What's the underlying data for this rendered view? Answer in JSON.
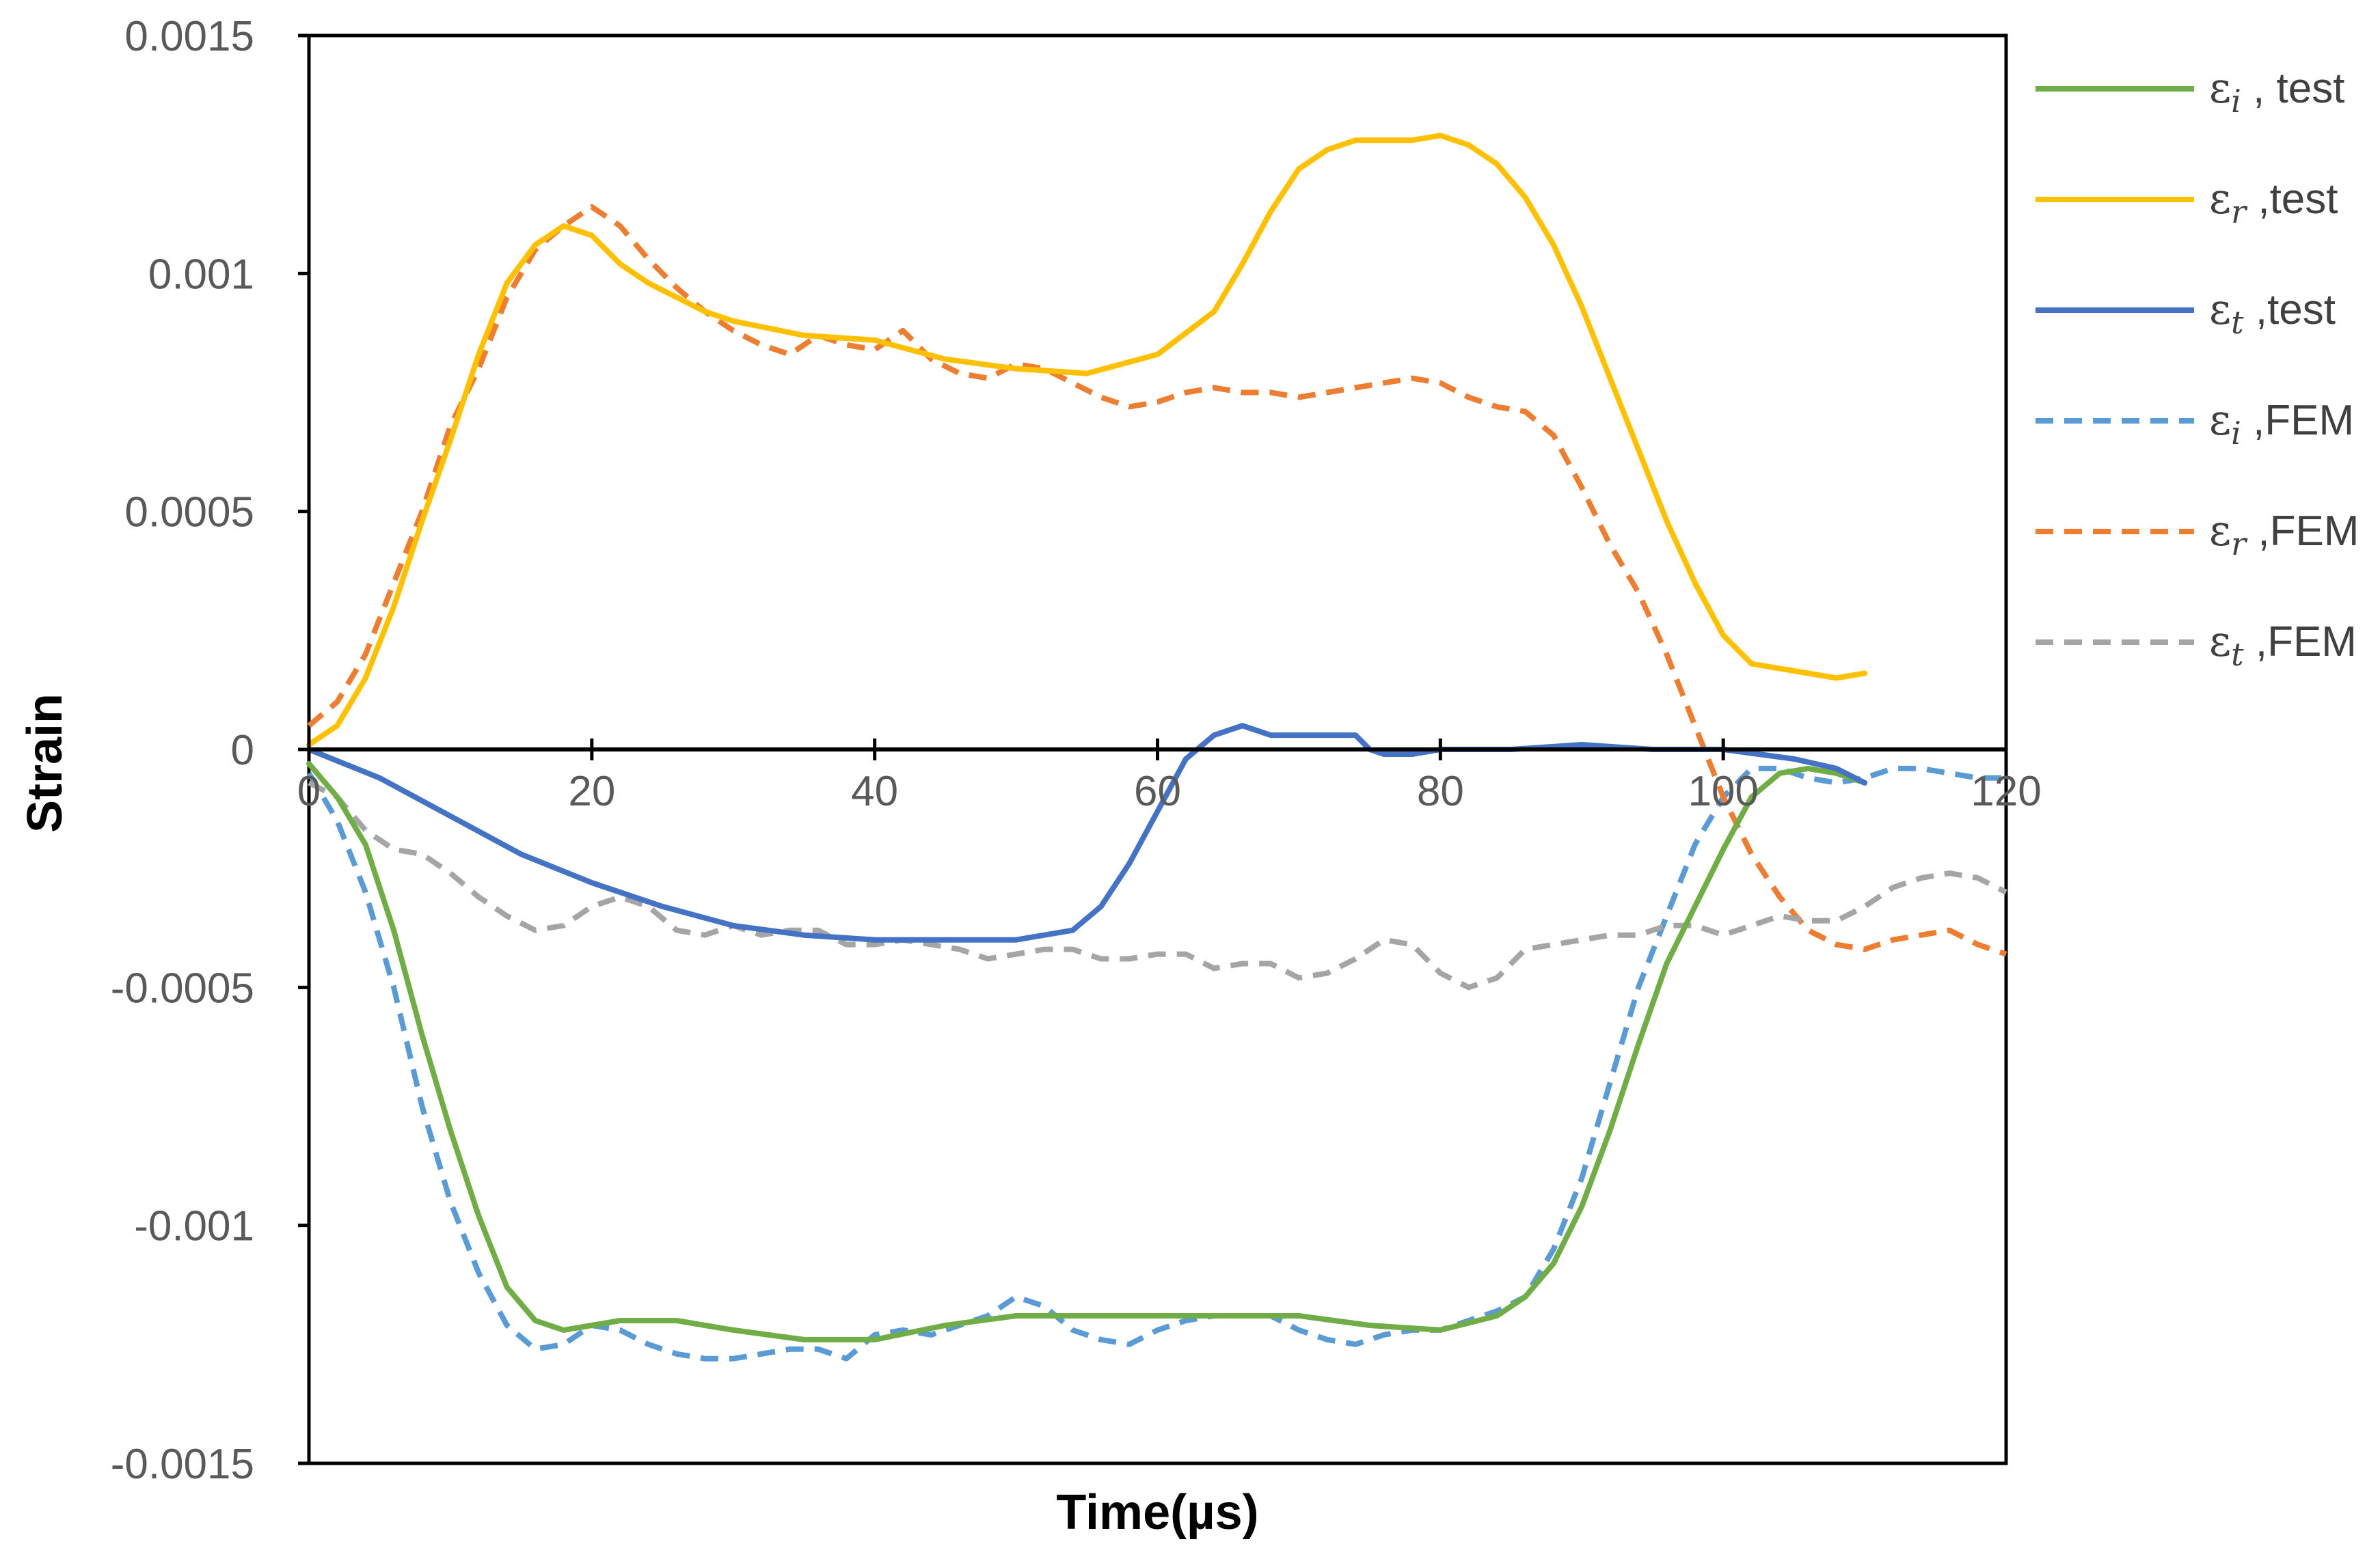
{
  "chart_data": {
    "type": "line",
    "title": "",
    "xlabel": "Time(µs)",
    "ylabel": "Strain",
    "xlim": [
      0,
      120
    ],
    "ylim": [
      -0.0015,
      0.0015
    ],
    "x_ticks": [
      0,
      20,
      40,
      60,
      80,
      100,
      120
    ],
    "x_tick_labels": [
      "0",
      "20",
      "40",
      "60",
      "80",
      "100",
      "120"
    ],
    "y_ticks": [
      0.0015,
      0.001,
      0.0005,
      0,
      -0.0005,
      -0.001,
      -0.0015
    ],
    "y_tick_labels": [
      "0.0015",
      "0.001",
      "0.0005",
      "0",
      "-0.0005",
      "-0.001",
      "-0.0015"
    ],
    "grid": false,
    "legend_position": "right",
    "series": [
      {
        "name": "εi , test",
        "symbol": "ε",
        "subscript": "i",
        "suffix": " , test",
        "color": "#70AD47",
        "dash": "solid",
        "x": [
          0,
          2,
          4,
          6,
          8,
          10,
          12,
          14,
          16,
          18,
          20,
          22,
          24,
          26,
          28,
          30,
          35,
          40,
          45,
          50,
          55,
          60,
          65,
          70,
          75,
          80,
          84,
          86,
          88,
          90,
          92,
          94,
          96,
          98,
          100,
          102,
          104,
          106,
          108,
          110
        ],
        "y": [
          -3e-05,
          -0.0001,
          -0.0002,
          -0.00038,
          -0.0006,
          -0.0008,
          -0.00098,
          -0.00113,
          -0.0012,
          -0.00122,
          -0.00121,
          -0.0012,
          -0.0012,
          -0.0012,
          -0.00121,
          -0.00122,
          -0.00124,
          -0.00124,
          -0.00121,
          -0.00119,
          -0.00119,
          -0.00119,
          -0.00119,
          -0.00119,
          -0.00121,
          -0.00122,
          -0.00119,
          -0.00115,
          -0.00108,
          -0.00096,
          -0.0008,
          -0.00062,
          -0.00045,
          -0.00033,
          -0.00021,
          -0.0001,
          -5e-05,
          -4e-05,
          -5e-05,
          -7e-05
        ]
      },
      {
        "name": "εr ,test",
        "symbol": "ε",
        "subscript": "r",
        "suffix": " ,test",
        "color": "#FFC000",
        "dash": "solid",
        "x": [
          0,
          2,
          4,
          6,
          8,
          10,
          12,
          14,
          16,
          18,
          20,
          22,
          24,
          26,
          28,
          30,
          35,
          40,
          45,
          50,
          55,
          60,
          64,
          66,
          68,
          70,
          72,
          74,
          76,
          78,
          80,
          82,
          84,
          86,
          88,
          90,
          92,
          94,
          96,
          98,
          100,
          102,
          104,
          106,
          108,
          110
        ],
        "y": [
          1e-05,
          5e-05,
          0.00015,
          0.0003,
          0.00048,
          0.00065,
          0.00083,
          0.00098,
          0.00106,
          0.0011,
          0.00108,
          0.00102,
          0.00098,
          0.00095,
          0.00092,
          0.0009,
          0.00087,
          0.00086,
          0.00082,
          0.0008,
          0.00079,
          0.00083,
          0.00092,
          0.00102,
          0.00113,
          0.00122,
          0.00126,
          0.00128,
          0.00128,
          0.00128,
          0.00129,
          0.00127,
          0.00123,
          0.00116,
          0.00106,
          0.00093,
          0.00078,
          0.00063,
          0.00048,
          0.00035,
          0.00024,
          0.00018,
          0.00017,
          0.00016,
          0.00015,
          0.00016
        ]
      },
      {
        "name": "εt ,test",
        "symbol": "ε",
        "subscript": "t",
        "suffix": " ,test",
        "color": "#4472C4",
        "dash": "solid",
        "x": [
          0,
          5,
          10,
          15,
          20,
          25,
          30,
          35,
          40,
          45,
          50,
          54,
          56,
          58,
          60,
          62,
          64,
          66,
          68,
          70,
          72,
          74,
          75,
          76,
          78,
          80,
          85,
          90,
          95,
          100,
          105,
          108,
          110
        ],
        "y": [
          0,
          -6e-05,
          -0.00014,
          -0.00022,
          -0.00028,
          -0.00033,
          -0.00037,
          -0.00039,
          -0.0004,
          -0.0004,
          -0.0004,
          -0.00038,
          -0.00033,
          -0.00024,
          -0.00013,
          -2e-05,
          3e-05,
          5e-05,
          3e-05,
          3e-05,
          3e-05,
          3e-05,
          0,
          -1e-05,
          -1e-05,
          0,
          0,
          1e-05,
          0,
          0,
          -2e-05,
          -4e-05,
          -7e-05
        ]
      },
      {
        "name": "εi ,FEM",
        "symbol": "ε",
        "subscript": "i",
        "suffix": " ,FEM",
        "color": "#5B9BD5",
        "dash": "dashed",
        "x": [
          0,
          2,
          4,
          6,
          8,
          10,
          12,
          14,
          16,
          18,
          20,
          22,
          24,
          26,
          28,
          30,
          32,
          34,
          36,
          38,
          40,
          42,
          44,
          46,
          48,
          50,
          52,
          54,
          56,
          58,
          60,
          62,
          64,
          66,
          68,
          70,
          72,
          74,
          76,
          78,
          80,
          84,
          86,
          88,
          90,
          92,
          94,
          96,
          98,
          100,
          102,
          104,
          106,
          108,
          110,
          112,
          114,
          116,
          118,
          120
        ],
        "y": [
          -5e-05,
          -0.00015,
          -0.0003,
          -0.0005,
          -0.00075,
          -0.00095,
          -0.0011,
          -0.00121,
          -0.00126,
          -0.00125,
          -0.00121,
          -0.00122,
          -0.00125,
          -0.00127,
          -0.00128,
          -0.00128,
          -0.00127,
          -0.00126,
          -0.00126,
          -0.00128,
          -0.00123,
          -0.00122,
          -0.00123,
          -0.00121,
          -0.00119,
          -0.00115,
          -0.00117,
          -0.00122,
          -0.00124,
          -0.00125,
          -0.00122,
          -0.0012,
          -0.00119,
          -0.00119,
          -0.00119,
          -0.00122,
          -0.00124,
          -0.00125,
          -0.00123,
          -0.00122,
          -0.00122,
          -0.00118,
          -0.00115,
          -0.00105,
          -0.0009,
          -0.0007,
          -0.0005,
          -0.00035,
          -0.0002,
          -0.0001,
          -4e-05,
          -4e-05,
          -6e-05,
          -7e-05,
          -6e-05,
          -4e-05,
          -4e-05,
          -5e-05,
          -6e-05,
          -6e-05
        ]
      },
      {
        "name": "εr ,FEM",
        "symbol": "ε",
        "subscript": "r",
        "suffix": " ,FEM",
        "color": "#ED7D31",
        "dash": "dashed",
        "x": [
          0,
          2,
          4,
          6,
          8,
          10,
          12,
          14,
          16,
          18,
          20,
          22,
          24,
          26,
          28,
          30,
          32,
          34,
          36,
          38,
          40,
          42,
          44,
          46,
          48,
          50,
          52,
          54,
          56,
          58,
          60,
          62,
          64,
          66,
          68,
          70,
          72,
          74,
          76,
          78,
          80,
          82,
          84,
          86,
          88,
          90,
          92,
          94,
          96,
          98,
          100,
          102,
          104,
          106,
          108,
          110,
          112,
          114,
          116,
          118,
          120
        ],
        "y": [
          5e-05,
          0.0001,
          0.0002,
          0.00035,
          0.0005,
          0.00068,
          0.0008,
          0.00095,
          0.00105,
          0.0011,
          0.00114,
          0.0011,
          0.00103,
          0.00097,
          0.00092,
          0.00088,
          0.00085,
          0.00083,
          0.00087,
          0.00085,
          0.00084,
          0.00088,
          0.00082,
          0.00079,
          0.00078,
          0.00081,
          0.0008,
          0.00077,
          0.00074,
          0.00072,
          0.00073,
          0.00075,
          0.00076,
          0.00075,
          0.00075,
          0.00074,
          0.00075,
          0.00076,
          0.00077,
          0.00078,
          0.00077,
          0.00074,
          0.00072,
          0.00071,
          0.00066,
          0.00055,
          0.00043,
          0.00033,
          0.0002,
          5e-05,
          -0.0001,
          -0.00022,
          -0.00031,
          -0.00038,
          -0.00041,
          -0.00042,
          -0.0004,
          -0.00039,
          -0.00038,
          -0.00041,
          -0.00043
        ]
      },
      {
        "name": "εt ,FEM",
        "symbol": "ε",
        "subscript": "t",
        "suffix": " ,FEM",
        "color": "#A5A5A5",
        "dash": "dashed",
        "x": [
          0,
          2,
          4,
          6,
          8,
          10,
          12,
          14,
          16,
          18,
          20,
          22,
          24,
          26,
          28,
          30,
          32,
          34,
          36,
          38,
          40,
          42,
          44,
          46,
          48,
          50,
          52,
          54,
          56,
          58,
          60,
          62,
          64,
          66,
          68,
          70,
          72,
          74,
          76,
          78,
          80,
          82,
          84,
          86,
          88,
          90,
          92,
          94,
          96,
          98,
          100,
          102,
          104,
          106,
          108,
          110,
          112,
          114,
          116,
          118,
          120
        ],
        "y": [
          -7e-05,
          -0.0001,
          -0.00017,
          -0.00021,
          -0.00022,
          -0.00026,
          -0.00031,
          -0.00035,
          -0.00038,
          -0.00037,
          -0.00033,
          -0.00031,
          -0.00033,
          -0.00038,
          -0.00039,
          -0.00037,
          -0.00039,
          -0.00038,
          -0.00038,
          -0.00041,
          -0.00041,
          -0.0004,
          -0.00041,
          -0.00042,
          -0.00044,
          -0.00043,
          -0.00042,
          -0.00042,
          -0.00044,
          -0.00044,
          -0.00043,
          -0.00043,
          -0.00046,
          -0.00045,
          -0.00045,
          -0.00048,
          -0.00047,
          -0.00044,
          -0.0004,
          -0.00041,
          -0.00047,
          -0.0005,
          -0.00048,
          -0.00042,
          -0.00041,
          -0.0004,
          -0.00039,
          -0.00039,
          -0.00037,
          -0.00037,
          -0.00039,
          -0.00037,
          -0.00035,
          -0.00036,
          -0.00036,
          -0.00033,
          -0.00029,
          -0.00027,
          -0.00026,
          -0.00027,
          -0.0003
        ]
      }
    ]
  }
}
